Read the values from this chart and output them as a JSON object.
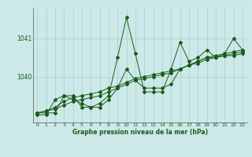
{
  "background_color": "#cce8e8",
  "grid_color": "#aacccc",
  "line_color": "#1a5c1a",
  "marker_color": "#1a5c1a",
  "xlabel": "Graphe pression niveau de la mer (hPa)",
  "ylim": [
    1038.8,
    1041.8
  ],
  "xlim": [
    -0.5,
    23.5
  ],
  "xticks": [
    0,
    1,
    2,
    3,
    4,
    5,
    6,
    7,
    8,
    9,
    10,
    11,
    12,
    13,
    14,
    15,
    16,
    17,
    18,
    19,
    20,
    21,
    22,
    23
  ],
  "yticks": [
    1040,
    1041
  ],
  "s0": [
    1039.0,
    1039.0,
    1039.4,
    1039.5,
    1039.4,
    1039.3,
    1039.2,
    1039.3,
    1039.5,
    1040.5,
    1041.55,
    1040.6,
    1039.6,
    1039.6,
    1039.6,
    1040.2,
    1040.9,
    1040.4,
    1040.5,
    1040.7,
    1040.5,
    1040.6,
    1041.0,
    1040.7
  ],
  "s1": [
    1039.05,
    1039.05,
    1039.05,
    1039.5,
    1039.5,
    1039.2,
    1039.2,
    1039.2,
    1039.4,
    1039.7,
    1040.2,
    1039.9,
    1039.7,
    1039.7,
    1039.7,
    1039.8,
    1040.2,
    1040.3,
    1040.4,
    1040.5,
    1040.5,
    1040.55,
    1040.55,
    1040.6
  ],
  "s2": [
    1039.05,
    1039.1,
    1039.2,
    1039.35,
    1039.45,
    1039.5,
    1039.55,
    1039.6,
    1039.7,
    1039.75,
    1039.85,
    1039.95,
    1040.0,
    1040.05,
    1040.1,
    1040.15,
    1040.2,
    1040.3,
    1040.4,
    1040.5,
    1040.55,
    1040.6,
    1040.65,
    1040.7
  ],
  "s3": [
    1039.05,
    1039.1,
    1039.15,
    1039.25,
    1039.35,
    1039.4,
    1039.45,
    1039.5,
    1039.6,
    1039.7,
    1039.8,
    1039.9,
    1039.95,
    1040.0,
    1040.05,
    1040.1,
    1040.2,
    1040.3,
    1040.35,
    1040.45,
    1040.5,
    1040.55,
    1040.6,
    1040.65
  ]
}
